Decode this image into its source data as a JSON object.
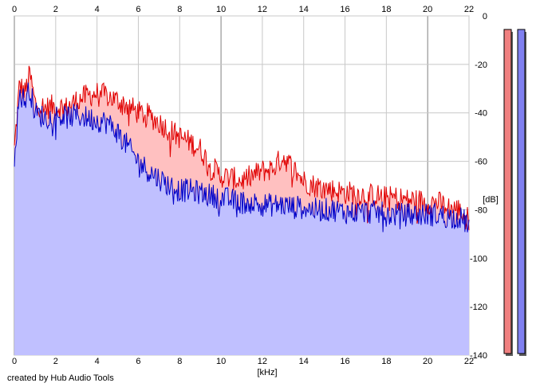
{
  "chart_data": {
    "type": "area",
    "xlabel": "[kHz]",
    "ylabel": "[dB]",
    "xlim": [
      0,
      22
    ],
    "ylim": [
      -140,
      0
    ],
    "x_ticks": [
      0,
      2,
      4,
      6,
      8,
      10,
      12,
      14,
      16,
      18,
      20,
      22
    ],
    "y_ticks": [
      0,
      -20,
      -40,
      -60,
      -80,
      -100,
      -120,
      -140
    ],
    "grid": true,
    "footer": "created by Hub Audio Tools",
    "series": [
      {
        "color": "#e00000",
        "fill": "#ffc0c0",
        "x": [
          0,
          0.25,
          0.5,
          0.75,
          1,
          1.5,
          2,
          2.5,
          3,
          3.5,
          4,
          4.5,
          5,
          5.5,
          6,
          6.5,
          7,
          7.5,
          8,
          8.5,
          9,
          9.5,
          10,
          10.5,
          11,
          11.5,
          12,
          12.5,
          13,
          13.5,
          14,
          14.5,
          15,
          15.5,
          16,
          16.5,
          17,
          17.5,
          18,
          18.5,
          19,
          19.5,
          20,
          20.5,
          21,
          21.5,
          22
        ],
        "values": [
          -55,
          -28,
          -32,
          -24,
          -36,
          -38,
          -37,
          -38,
          -35,
          -33,
          -32,
          -33,
          -35,
          -37,
          -40,
          -41,
          -44,
          -47,
          -50,
          -52,
          -55,
          -62,
          -66,
          -67,
          -68,
          -66,
          -64,
          -63,
          -58,
          -63,
          -68,
          -70,
          -71,
          -72,
          -73,
          -73,
          -74,
          -74,
          -75,
          -75,
          -76,
          -76,
          -77,
          -77,
          -79,
          -80,
          -84
        ]
      },
      {
        "color": "#0000c8",
        "fill": "#c0c0ff",
        "x": [
          0,
          0.25,
          0.5,
          0.75,
          1,
          1.5,
          2,
          2.5,
          3,
          3.5,
          4,
          4.5,
          5,
          5.5,
          6,
          6.5,
          7,
          7.5,
          8,
          8.5,
          9,
          9.5,
          10,
          10.5,
          11,
          11.5,
          12,
          12.5,
          13,
          13.5,
          14,
          14.5,
          15,
          15.5,
          16,
          16.5,
          17,
          17.5,
          18,
          18.5,
          19,
          19.5,
          20,
          20.5,
          21,
          21.5,
          22
        ],
        "values": [
          -58,
          -32,
          -35,
          -30,
          -40,
          -42,
          -41,
          -42,
          -41,
          -42,
          -43,
          -44,
          -48,
          -54,
          -60,
          -64,
          -67,
          -70,
          -72,
          -72,
          -73,
          -74,
          -75,
          -76,
          -77,
          -77,
          -78,
          -78,
          -78,
          -79,
          -79,
          -80,
          -80,
          -80,
          -81,
          -81,
          -81,
          -81,
          -82,
          -82,
          -82,
          -82,
          -82,
          -82,
          -83,
          -83,
          -86
        ]
      }
    ]
  }
}
